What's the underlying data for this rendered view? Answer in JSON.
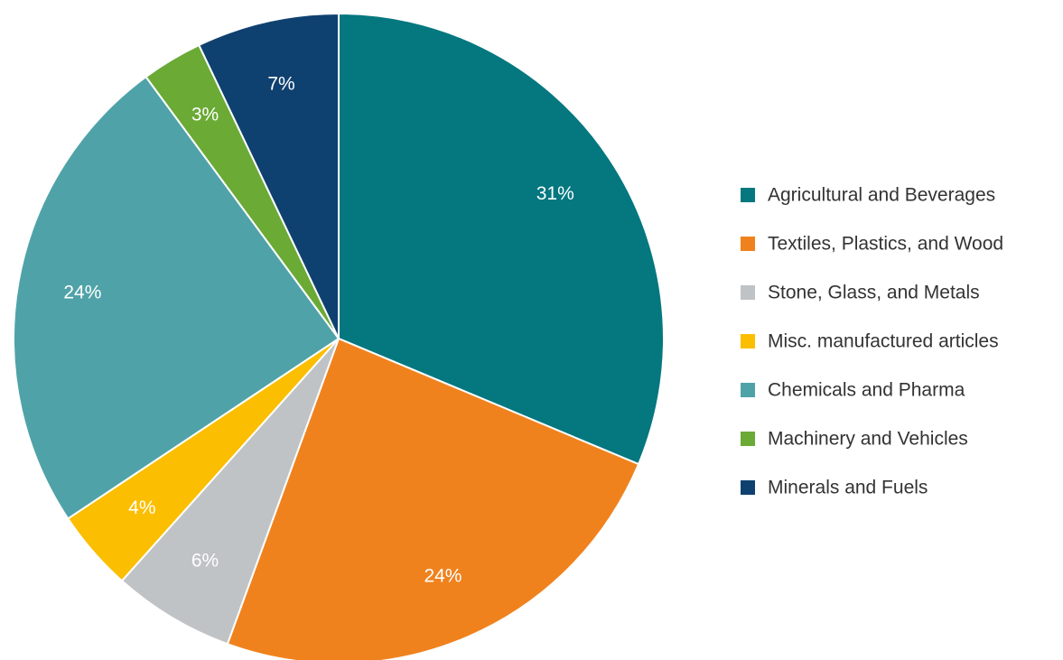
{
  "chart_data": {
    "type": "pie",
    "categories": [
      "Agricultural and Beverages",
      "Textiles, Plastics, and Wood",
      "Stone, Glass, and Metals",
      "Misc. manufactured articles",
      "Chemicals and Pharma",
      "Machinery and Vehicles",
      "Minerals and Fuels"
    ],
    "values": [
      31,
      24,
      6,
      4,
      24,
      3,
      7
    ],
    "value_labels": [
      "31%",
      "24%",
      "6%",
      "4%",
      "24%",
      "3%",
      "7%"
    ],
    "colors": [
      "#04777f",
      "#f0821e",
      "#bfc3c5",
      "#fbbe00",
      "#4fa3a8",
      "#6aaa35",
      "#0f4170"
    ],
    "legend": "right"
  }
}
